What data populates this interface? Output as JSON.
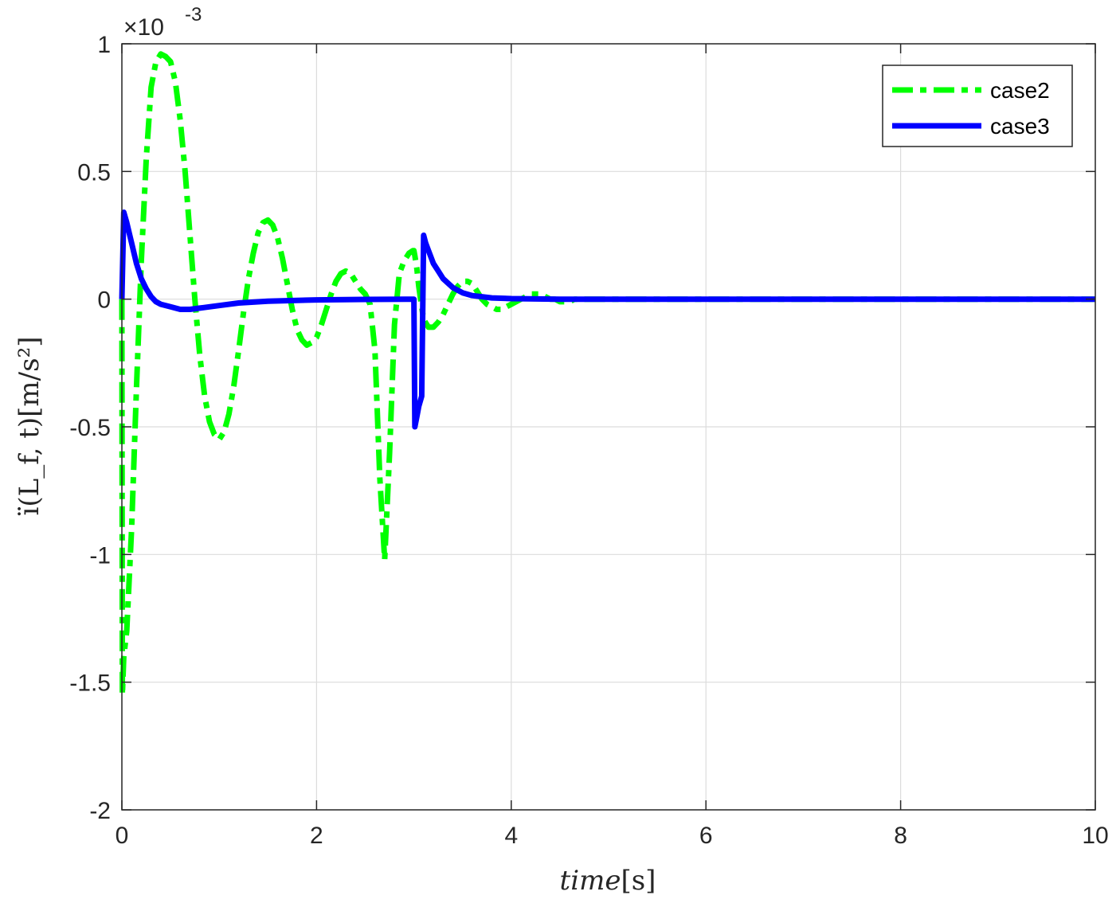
{
  "chart_data": {
    "type": "line",
    "title": "",
    "xlabel_italic": "time",
    "xlabel_unit": "[s]",
    "ylabel": "ï(L_f, t)[m/s²]",
    "y_exponent_label": "×10",
    "y_exponent_power": "-3",
    "xlim": [
      0,
      10
    ],
    "ylim": [
      -2,
      1
    ],
    "x_ticks": [
      0,
      2,
      4,
      6,
      8,
      10
    ],
    "x_tick_labels": [
      "0",
      "2",
      "4",
      "6",
      "8",
      "10"
    ],
    "y_ticks": [
      -2,
      -1.5,
      -1,
      -0.5,
      0,
      0.5,
      1
    ],
    "y_tick_labels": [
      "-2",
      "-1.5",
      "-1",
      "-0.5",
      "0",
      "0.5",
      "1"
    ],
    "grid": true,
    "legend_position": "top-right",
    "series": [
      {
        "name": "case2",
        "color": "#00ff00",
        "style": "dash-dot",
        "x": [
          0,
          0.005,
          0.02,
          0.05,
          0.1,
          0.15,
          0.2,
          0.25,
          0.3,
          0.35,
          0.4,
          0.45,
          0.5,
          0.55,
          0.6,
          0.65,
          0.7,
          0.75,
          0.8,
          0.85,
          0.9,
          0.95,
          1.0,
          1.05,
          1.1,
          1.15,
          1.2,
          1.25,
          1.3,
          1.35,
          1.4,
          1.45,
          1.5,
          1.55,
          1.6,
          1.65,
          1.7,
          1.75,
          1.8,
          1.85,
          1.9,
          1.95,
          2.0,
          2.05,
          2.1,
          2.15,
          2.2,
          2.25,
          2.3,
          2.35,
          2.4,
          2.45,
          2.5,
          2.55,
          2.6,
          2.65,
          2.7,
          2.75,
          2.8,
          2.85,
          2.9,
          2.95,
          2.99,
          3.0,
          3.01,
          3.03,
          3.05,
          3.08,
          3.1,
          3.15,
          3.2,
          3.25,
          3.3,
          3.35,
          3.4,
          3.45,
          3.5,
          3.55,
          3.6,
          3.65,
          3.7,
          3.75,
          3.8,
          3.85,
          3.9,
          3.95,
          4.0,
          4.05,
          4.1,
          4.15,
          4.2,
          4.25,
          4.3,
          4.35,
          4.4,
          4.45,
          4.5,
          4.55,
          4.6,
          4.65,
          4.7,
          4.75,
          4.8,
          4.85,
          4.9,
          4.95,
          5.0,
          5.1,
          5.2,
          5.3,
          5.4,
          5.5,
          5.6,
          5.7,
          5.8,
          5.9,
          6.0,
          6.2,
          6.4,
          6.6,
          6.8,
          7.0,
          7.5,
          8.0,
          8.5,
          9.0,
          9.5,
          10.0
        ],
        "y": [
          0,
          -1.55,
          -1.4,
          -1.3,
          -0.9,
          -0.35,
          0.15,
          0.55,
          0.83,
          0.93,
          0.96,
          0.95,
          0.93,
          0.85,
          0.7,
          0.5,
          0.25,
          0.0,
          -0.22,
          -0.38,
          -0.48,
          -0.53,
          -0.55,
          -0.52,
          -0.45,
          -0.34,
          -0.2,
          -0.05,
          0.08,
          0.18,
          0.26,
          0.3,
          0.31,
          0.29,
          0.24,
          0.16,
          0.06,
          -0.04,
          -0.12,
          -0.16,
          -0.18,
          -0.17,
          -0.15,
          -0.1,
          -0.04,
          0.02,
          0.07,
          0.1,
          0.11,
          0.1,
          0.07,
          0.04,
          0.02,
          -0.02,
          -0.2,
          -0.7,
          -1.02,
          -0.6,
          -0.1,
          0.1,
          0.15,
          0.18,
          0.19,
          0.19,
          0.17,
          0.12,
          0.05,
          -0.03,
          -0.08,
          -0.11,
          -0.11,
          -0.09,
          -0.06,
          -0.02,
          0.02,
          0.05,
          0.07,
          0.07,
          0.06,
          0.03,
          0.0,
          -0.02,
          -0.03,
          -0.04,
          -0.04,
          -0.03,
          -0.02,
          -0.01,
          0.0,
          0.01,
          0.02,
          0.02,
          0.02,
          0.01,
          0.0,
          0.0,
          -0.01,
          -0.01,
          -0.01,
          0.0,
          0.0,
          0.0,
          0.0,
          0.0,
          0.0,
          0.0,
          0.0,
          0.0,
          0.0,
          0.0,
          0.0,
          0.0,
          0.0,
          0.0,
          0.0,
          0.0,
          0.0,
          0.0,
          0.0,
          0.0,
          0.0,
          0.0,
          0.0,
          0.0,
          0.0,
          0.0,
          0.0,
          0.0
        ]
      },
      {
        "name": "case3",
        "color": "#0000ff",
        "style": "solid",
        "x": [
          0,
          0.02,
          0.05,
          0.1,
          0.15,
          0.2,
          0.25,
          0.3,
          0.35,
          0.4,
          0.5,
          0.6,
          0.7,
          0.8,
          1.0,
          1.2,
          1.5,
          2.0,
          2.5,
          2.99,
          3.0,
          3.01,
          3.03,
          3.05,
          3.08,
          3.1,
          3.12,
          3.15,
          3.2,
          3.25,
          3.3,
          3.4,
          3.5,
          3.6,
          3.8,
          4.0,
          4.5,
          5.0,
          6.0,
          7.0,
          8.0,
          9.0,
          10.0
        ],
        "y": [
          0,
          0.34,
          0.3,
          0.22,
          0.14,
          0.08,
          0.04,
          0.01,
          -0.01,
          -0.02,
          -0.03,
          -0.04,
          -0.04,
          -0.035,
          -0.025,
          -0.015,
          -0.008,
          -0.003,
          -0.001,
          0,
          0,
          -0.5,
          -0.46,
          -0.42,
          -0.38,
          0.25,
          0.22,
          0.19,
          0.14,
          0.11,
          0.08,
          0.045,
          0.025,
          0.014,
          0.005,
          0.002,
          0.0,
          0.0,
          0.0,
          0.0,
          0.0,
          0.0,
          0.0
        ]
      }
    ]
  }
}
